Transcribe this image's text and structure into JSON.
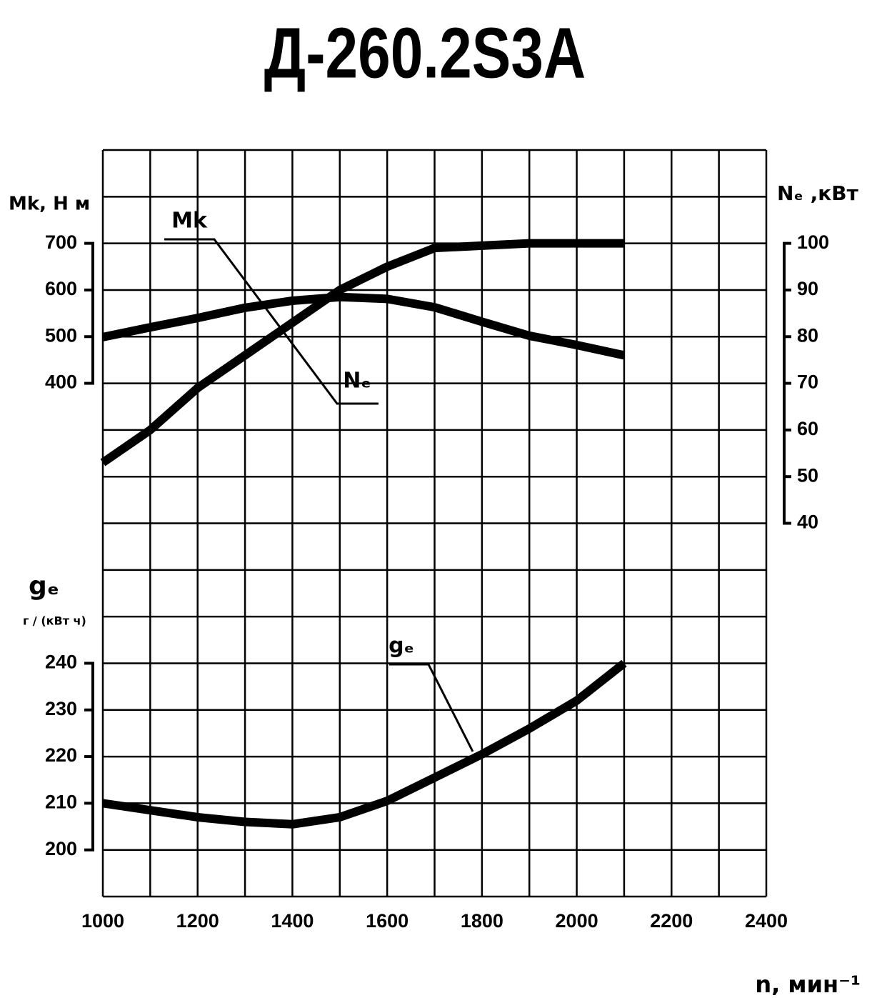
{
  "chart_data": {
    "type": "line",
    "title": "Д-260.2S3A",
    "x_label": "n, мин⁻¹",
    "y_label": "Mk, Н м",
    "y2_label": "Nₑ ,кВт",
    "y3_label": "gₑ",
    "y3_unit": "г / (кВт ч)",
    "x": [
      1000,
      1100,
      1200,
      1300,
      1400,
      1500,
      1600,
      1700,
      1800,
      1900,
      2000,
      2100
    ],
    "xlim": [
      1000,
      2400
    ],
    "xticks": [
      1000,
      1200,
      1400,
      1600,
      1800,
      2000,
      2200,
      2400
    ],
    "xgrid": [
      1000,
      1100,
      1200,
      1300,
      1400,
      1500,
      1600,
      1700,
      1800,
      1900,
      2000,
      2100,
      2200,
      2300,
      2400
    ],
    "ylim": [
      -700,
      900
    ],
    "yticks": [
      400,
      500,
      600,
      700
    ],
    "ygrid": [
      -700,
      -600,
      -500,
      -400,
      -300,
      -200,
      -100,
      0,
      100,
      200,
      300,
      400,
      500,
      600,
      700,
      800,
      900
    ],
    "y2lim": [
      -40,
      120
    ],
    "y2ticks": [
      40,
      50,
      60,
      70,
      80,
      90,
      100
    ],
    "y3lim": [
      190,
      350
    ],
    "y3ticks": [
      200,
      210,
      220,
      230,
      240
    ],
    "grid": true,
    "series": [
      {
        "name": "Mk",
        "color": "#000000",
        "axis": "y",
        "values": [
          499,
          520,
          540,
          562,
          577,
          585,
          581,
          563,
          532,
          502,
          482,
          460
        ]
      },
      {
        "name": "Nₑ",
        "color": "#000000",
        "axis": "y2",
        "values": [
          53,
          60,
          69,
          76,
          83,
          90,
          95,
          99,
          99.5,
          100,
          100,
          100
        ]
      },
      {
        "name": "gₑ",
        "color": "#000000",
        "axis": "y3",
        "values": [
          210,
          208.5,
          207,
          206,
          205.5,
          207,
          210.5,
          215.5,
          220.5,
          226,
          232,
          240
        ]
      }
    ]
  }
}
